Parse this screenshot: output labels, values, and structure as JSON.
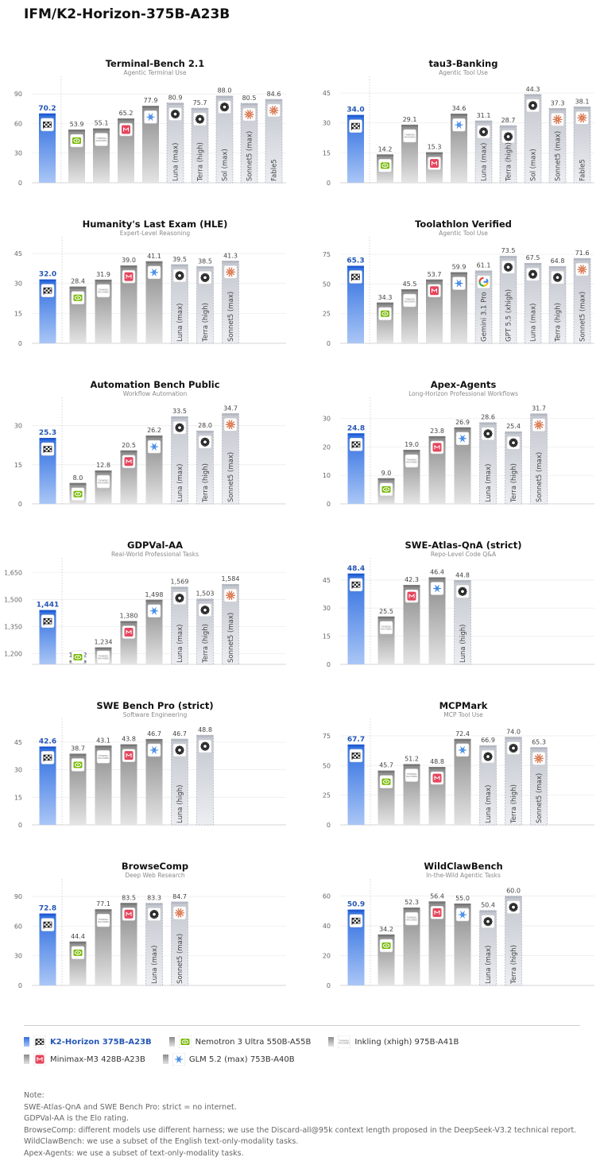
{
  "page_title": "IFM/K2-Horizon-375B-A23B",
  "models": {
    "main": {
      "icon": "k2-horizon-icon"
    },
    "nemotron": {
      "icon": "nvidia-icon"
    },
    "inkling": {
      "icon": "thinking-machines-icon"
    },
    "minimax": {
      "icon": "minimax-icon"
    },
    "glm": {
      "icon": "glm-icon"
    },
    "openai": {
      "icon": "openai-icon"
    },
    "anthropic": {
      "icon": "anthropic-icon"
    },
    "google": {
      "icon": "google-icon"
    }
  },
  "colors": {
    "main": "#4f86e6",
    "main_label": "#2456b4",
    "gray": "#8e8e8e",
    "ref": "#c9ccd3"
  },
  "chart_data": [
    {
      "type": "bar",
      "title": "Terminal-Bench 2.1",
      "subtitle": "Agentic Terminal Use",
      "ylim": [
        0,
        95
      ],
      "yticks": [
        0,
        30,
        60,
        90
      ],
      "bars": [
        {
          "model": "main",
          "value": 70.2,
          "label": "70.2"
        },
        {
          "model": "nemotron",
          "value": 53.9,
          "label": "53.9"
        },
        {
          "model": "inkling",
          "value": 55.1,
          "label": "55.1"
        },
        {
          "model": "minimax",
          "value": 65.2,
          "label": "65.2"
        },
        {
          "model": "glm",
          "value": 77.9,
          "label": "77.9"
        },
        {
          "model": "openai",
          "value": 80.9,
          "label": "80.9",
          "name": "Luna (max)"
        },
        {
          "model": "openai",
          "value": 75.7,
          "label": "75.7",
          "name": "Terra (high)"
        },
        {
          "model": "openai",
          "value": 88.0,
          "label": "88.0",
          "name": "Sol (max)"
        },
        {
          "model": "anthropic",
          "value": 80.5,
          "label": "80.5",
          "name": "Sonnet5 (max)"
        },
        {
          "model": "anthropic",
          "value": 84.6,
          "label": "84.6",
          "name": "Fable5"
        }
      ]
    },
    {
      "type": "bar",
      "title": "tau3-Banking",
      "subtitle": "Agentic Tool Use",
      "ylim": [
        0,
        47
      ],
      "yticks": [
        0,
        15,
        30,
        45
      ],
      "bars": [
        {
          "model": "main",
          "value": 34.0,
          "label": "34.0"
        },
        {
          "model": "nemotron",
          "value": 14.2,
          "label": "14.2"
        },
        {
          "model": "inkling",
          "value": 29.1,
          "label": "29.1"
        },
        {
          "model": "minimax",
          "value": 15.3,
          "label": "15.3"
        },
        {
          "model": "glm",
          "value": 34.6,
          "label": "34.6"
        },
        {
          "model": "openai",
          "value": 31.1,
          "label": "31.1",
          "name": "Luna (max)"
        },
        {
          "model": "openai",
          "value": 28.7,
          "label": "28.7",
          "name": "Terra (high)"
        },
        {
          "model": "openai",
          "value": 44.3,
          "label": "44.3",
          "name": "Sol (max)"
        },
        {
          "model": "anthropic",
          "value": 37.3,
          "label": "37.3",
          "name": "Sonnet5 (max)"
        },
        {
          "model": "anthropic",
          "value": 38.1,
          "label": "38.1",
          "name": "Fable5"
        }
      ]
    },
    {
      "type": "bar",
      "title": "Humanity's Last Exam (HLE)",
      "subtitle": "Expert-Level Reasoning",
      "ylim": [
        0,
        47
      ],
      "yticks": [
        0,
        15,
        30,
        45
      ],
      "bars": [
        {
          "model": "main",
          "value": 32.0,
          "label": "32.0"
        },
        {
          "model": "nemotron",
          "value": 28.4,
          "label": "28.4"
        },
        {
          "model": "inkling",
          "value": 31.9,
          "label": "31.9"
        },
        {
          "model": "minimax",
          "value": 39.0,
          "label": "39.0"
        },
        {
          "model": "glm",
          "value": 41.1,
          "label": "41.1"
        },
        {
          "model": "openai",
          "value": 39.5,
          "label": "39.5",
          "name": "Luna (max)"
        },
        {
          "model": "openai",
          "value": 38.5,
          "label": "38.5",
          "name": "Terra (high)"
        },
        {
          "model": "anthropic",
          "value": 41.3,
          "label": "41.3",
          "name": "Sonnet5 (max)"
        }
      ]
    },
    {
      "type": "bar",
      "title": "Toolathlon Verified",
      "subtitle": "Agentic Tool Use",
      "ylim": [
        0,
        79
      ],
      "yticks": [
        0,
        25,
        50,
        75
      ],
      "bars": [
        {
          "model": "main",
          "value": 65.3,
          "label": "65.3"
        },
        {
          "model": "nemotron",
          "value": 34.3,
          "label": "34.3"
        },
        {
          "model": "inkling",
          "value": 45.5,
          "label": "45.5"
        },
        {
          "model": "minimax",
          "value": 53.7,
          "label": "53.7"
        },
        {
          "model": "glm",
          "value": 59.9,
          "label": "59.9"
        },
        {
          "model": "google",
          "value": 61.1,
          "label": "61.1",
          "name": "Gemini 3.1 Pro"
        },
        {
          "model": "openai",
          "value": 73.5,
          "label": "73.5",
          "name": "GPT 5.5 (xhigh)"
        },
        {
          "model": "openai",
          "value": 67.5,
          "label": "67.5",
          "name": "Luna (max)"
        },
        {
          "model": "openai",
          "value": 64.8,
          "label": "64.8",
          "name": "Terra (high)"
        },
        {
          "model": "anthropic",
          "value": 71.6,
          "label": "71.6",
          "name": "Sonnet5 (max)"
        }
      ]
    },
    {
      "type": "bar",
      "title": "Automation Bench Public",
      "subtitle": "Workflow Automation",
      "ylim": [
        0,
        36
      ],
      "yticks": [
        0,
        15,
        30
      ],
      "bars": [
        {
          "model": "main",
          "value": 25.3,
          "label": "25.3"
        },
        {
          "model": "nemotron",
          "value": 8.0,
          "label": "8.0"
        },
        {
          "model": "inkling",
          "value": 12.8,
          "label": "12.8"
        },
        {
          "model": "minimax",
          "value": 20.5,
          "label": "20.5"
        },
        {
          "model": "glm",
          "value": 26.2,
          "label": "26.2"
        },
        {
          "model": "openai",
          "value": 33.5,
          "label": "33.5",
          "name": "Luna (max)"
        },
        {
          "model": "openai",
          "value": 28.0,
          "label": "28.0",
          "name": "Terra (high)"
        },
        {
          "model": "anthropic",
          "value": 34.7,
          "label": "34.7",
          "name": "Sonnet5 (max)"
        }
      ]
    },
    {
      "type": "bar",
      "title": "Apex-Agents",
      "subtitle": "Long-Horizon Professional Workflows",
      "ylim": [
        0,
        33
      ],
      "yticks": [
        0,
        10,
        20,
        30
      ],
      "bars": [
        {
          "model": "main",
          "value": 24.8,
          "label": "24.8"
        },
        {
          "model": "nemotron",
          "value": 9.0,
          "label": "9.0"
        },
        {
          "model": "inkling",
          "value": 19.0,
          "label": "19.0"
        },
        {
          "model": "minimax",
          "value": 23.8,
          "label": "23.8"
        },
        {
          "model": "glm",
          "value": 26.9,
          "label": "26.9"
        },
        {
          "model": "openai",
          "value": 28.6,
          "label": "28.6",
          "name": "Luna (max)"
        },
        {
          "model": "openai",
          "value": 25.4,
          "label": "25.4",
          "name": "Terra (high)"
        },
        {
          "model": "anthropic",
          "value": 31.7,
          "label": "31.7",
          "name": "Sonnet5 (max)"
        }
      ]
    },
    {
      "type": "bar",
      "title": "GDPVal-AA",
      "subtitle": "Real-World Professional Tasks",
      "ylim": [
        1140,
        1660
      ],
      "yticks": [
        1200,
        1350,
        1500,
        1650
      ],
      "bars": [
        {
          "model": "main",
          "value": 1441,
          "label": "1,441"
        },
        {
          "model": "nemotron",
          "value": 1162,
          "label": "1,162"
        },
        {
          "model": "inkling",
          "value": 1234,
          "label": "1,234"
        },
        {
          "model": "minimax",
          "value": 1380,
          "label": "1,380"
        },
        {
          "model": "glm",
          "value": 1498,
          "label": "1,498"
        },
        {
          "model": "openai",
          "value": 1569,
          "label": "1,569",
          "name": "Luna (max)"
        },
        {
          "model": "openai",
          "value": 1503,
          "label": "1,503",
          "name": "Terra (high)"
        },
        {
          "model": "anthropic",
          "value": 1584,
          "label": "1,584",
          "name": "Sonnet5 (max)"
        }
      ]
    },
    {
      "type": "bar",
      "title": "SWE-Atlas-QnA (strict)",
      "subtitle": "Repo-Level Code Q&A",
      "ylim": [
        0,
        50
      ],
      "yticks": [
        0,
        15,
        30,
        45
      ],
      "bars": [
        {
          "model": "main",
          "value": 48.4,
          "label": "48.4"
        },
        {
          "model": "inkling",
          "value": 25.5,
          "label": "25.5"
        },
        {
          "model": "minimax",
          "value": 42.3,
          "label": "42.3"
        },
        {
          "model": "glm",
          "value": 46.4,
          "label": "46.4"
        },
        {
          "model": "openai",
          "value": 44.8,
          "label": "44.8",
          "name": "Luna (high)"
        }
      ]
    },
    {
      "type": "bar",
      "title": "SWE Bench Pro (strict)",
      "subtitle": "Software Engineering",
      "ylim": [
        0,
        51
      ],
      "yticks": [
        0,
        15,
        30,
        45
      ],
      "bars": [
        {
          "model": "main",
          "value": 42.6,
          "label": "42.6"
        },
        {
          "model": "nemotron",
          "value": 38.7,
          "label": "38.7"
        },
        {
          "model": "inkling",
          "value": 43.1,
          "label": "43.1"
        },
        {
          "model": "minimax",
          "value": 43.8,
          "label": "43.8"
        },
        {
          "model": "glm",
          "value": 46.7,
          "label": "46.7"
        },
        {
          "model": "openai",
          "value": 46.7,
          "label": "46.7",
          "name": "Luna (high)"
        },
        {
          "model": "openai",
          "value": 48.8,
          "label": "48.8",
          "name": ""
        }
      ]
    },
    {
      "type": "bar",
      "title": "MCPMark",
      "subtitle": "MCP Tool Use",
      "ylim": [
        0,
        79
      ],
      "yticks": [
        0,
        25,
        50,
        75
      ],
      "bars": [
        {
          "model": "main",
          "value": 67.7,
          "label": "67.7"
        },
        {
          "model": "nemotron",
          "value": 45.7,
          "label": "45.7"
        },
        {
          "model": "inkling",
          "value": 51.2,
          "label": "51.2"
        },
        {
          "model": "minimax",
          "value": 48.8,
          "label": "48.8"
        },
        {
          "model": "glm",
          "value": 72.4,
          "label": "72.4"
        },
        {
          "model": "openai",
          "value": 66.9,
          "label": "66.9",
          "name": "Luna (max)"
        },
        {
          "model": "openai",
          "value": 74.0,
          "label": "74.0",
          "name": "Terra (high)"
        },
        {
          "model": "anthropic",
          "value": 65.3,
          "label": "65.3",
          "name": "Sonnet5 (max)"
        }
      ]
    },
    {
      "type": "bar",
      "title": "BrowseComp",
      "subtitle": "Deep Web Research",
      "ylim": [
        0,
        95
      ],
      "yticks": [
        0,
        30,
        60,
        90
      ],
      "bars": [
        {
          "model": "main",
          "value": 72.8,
          "label": "72.8"
        },
        {
          "model": "nemotron",
          "value": 44.4,
          "label": "44.4"
        },
        {
          "model": "inkling",
          "value": 77.1,
          "label": "77.1"
        },
        {
          "model": "minimax",
          "value": 83.5,
          "label": "83.5"
        },
        {
          "model": "openai",
          "value": 83.3,
          "label": "83.3",
          "name": "Luna (max)"
        },
        {
          "model": "anthropic",
          "value": 84.7,
          "label": "84.7",
          "name": "Sonnet5 (max)"
        }
      ]
    },
    {
      "type": "bar",
      "title": "WildClawBench",
      "subtitle": "In-the-Wild Agentic Tasks",
      "ylim": [
        0,
        63
      ],
      "yticks": [
        0,
        20,
        40,
        60
      ],
      "bars": [
        {
          "model": "main",
          "value": 50.9,
          "label": "50.9"
        },
        {
          "model": "nemotron",
          "value": 34.2,
          "label": "34.2"
        },
        {
          "model": "inkling",
          "value": 52.3,
          "label": "52.3"
        },
        {
          "model": "minimax",
          "value": 56.4,
          "label": "56.4"
        },
        {
          "model": "glm",
          "value": 55.0,
          "label": "55.0"
        },
        {
          "model": "openai",
          "value": 50.4,
          "label": "50.4",
          "name": "Luna (max)"
        },
        {
          "model": "openai",
          "value": 60.0,
          "label": "60.0",
          "name": "Terra (high)"
        }
      ]
    }
  ],
  "legend": [
    {
      "model": "main",
      "label": "K2-Horizon 375B-A23B"
    },
    {
      "model": "nemotron",
      "label": "Nemotron 3 Ultra 550B-A55B"
    },
    {
      "model": "inkling",
      "label": "Inkling (xhigh) 975B-A41B"
    },
    {
      "model": "minimax",
      "label": "Minimax-M3 428B-A23B"
    },
    {
      "model": "glm",
      "label": "GLM 5.2 (max) 753B-A40B"
    }
  ],
  "notes": [
    "Note:",
    "SWE-Atlas-QnA and SWE Bench Pro: strict = no internet.",
    "GDPVal-AA is the Elo rating.",
    "BrowseComp: different models use different harness; we use the Discard-all@95k context length proposed in the DeepSeek-V3.2 technical report.",
    "WildClawBench: we use a subset of the English text-only-modality tasks.",
    "Apex-Agents: we use a subset of text-only-modality tasks."
  ]
}
